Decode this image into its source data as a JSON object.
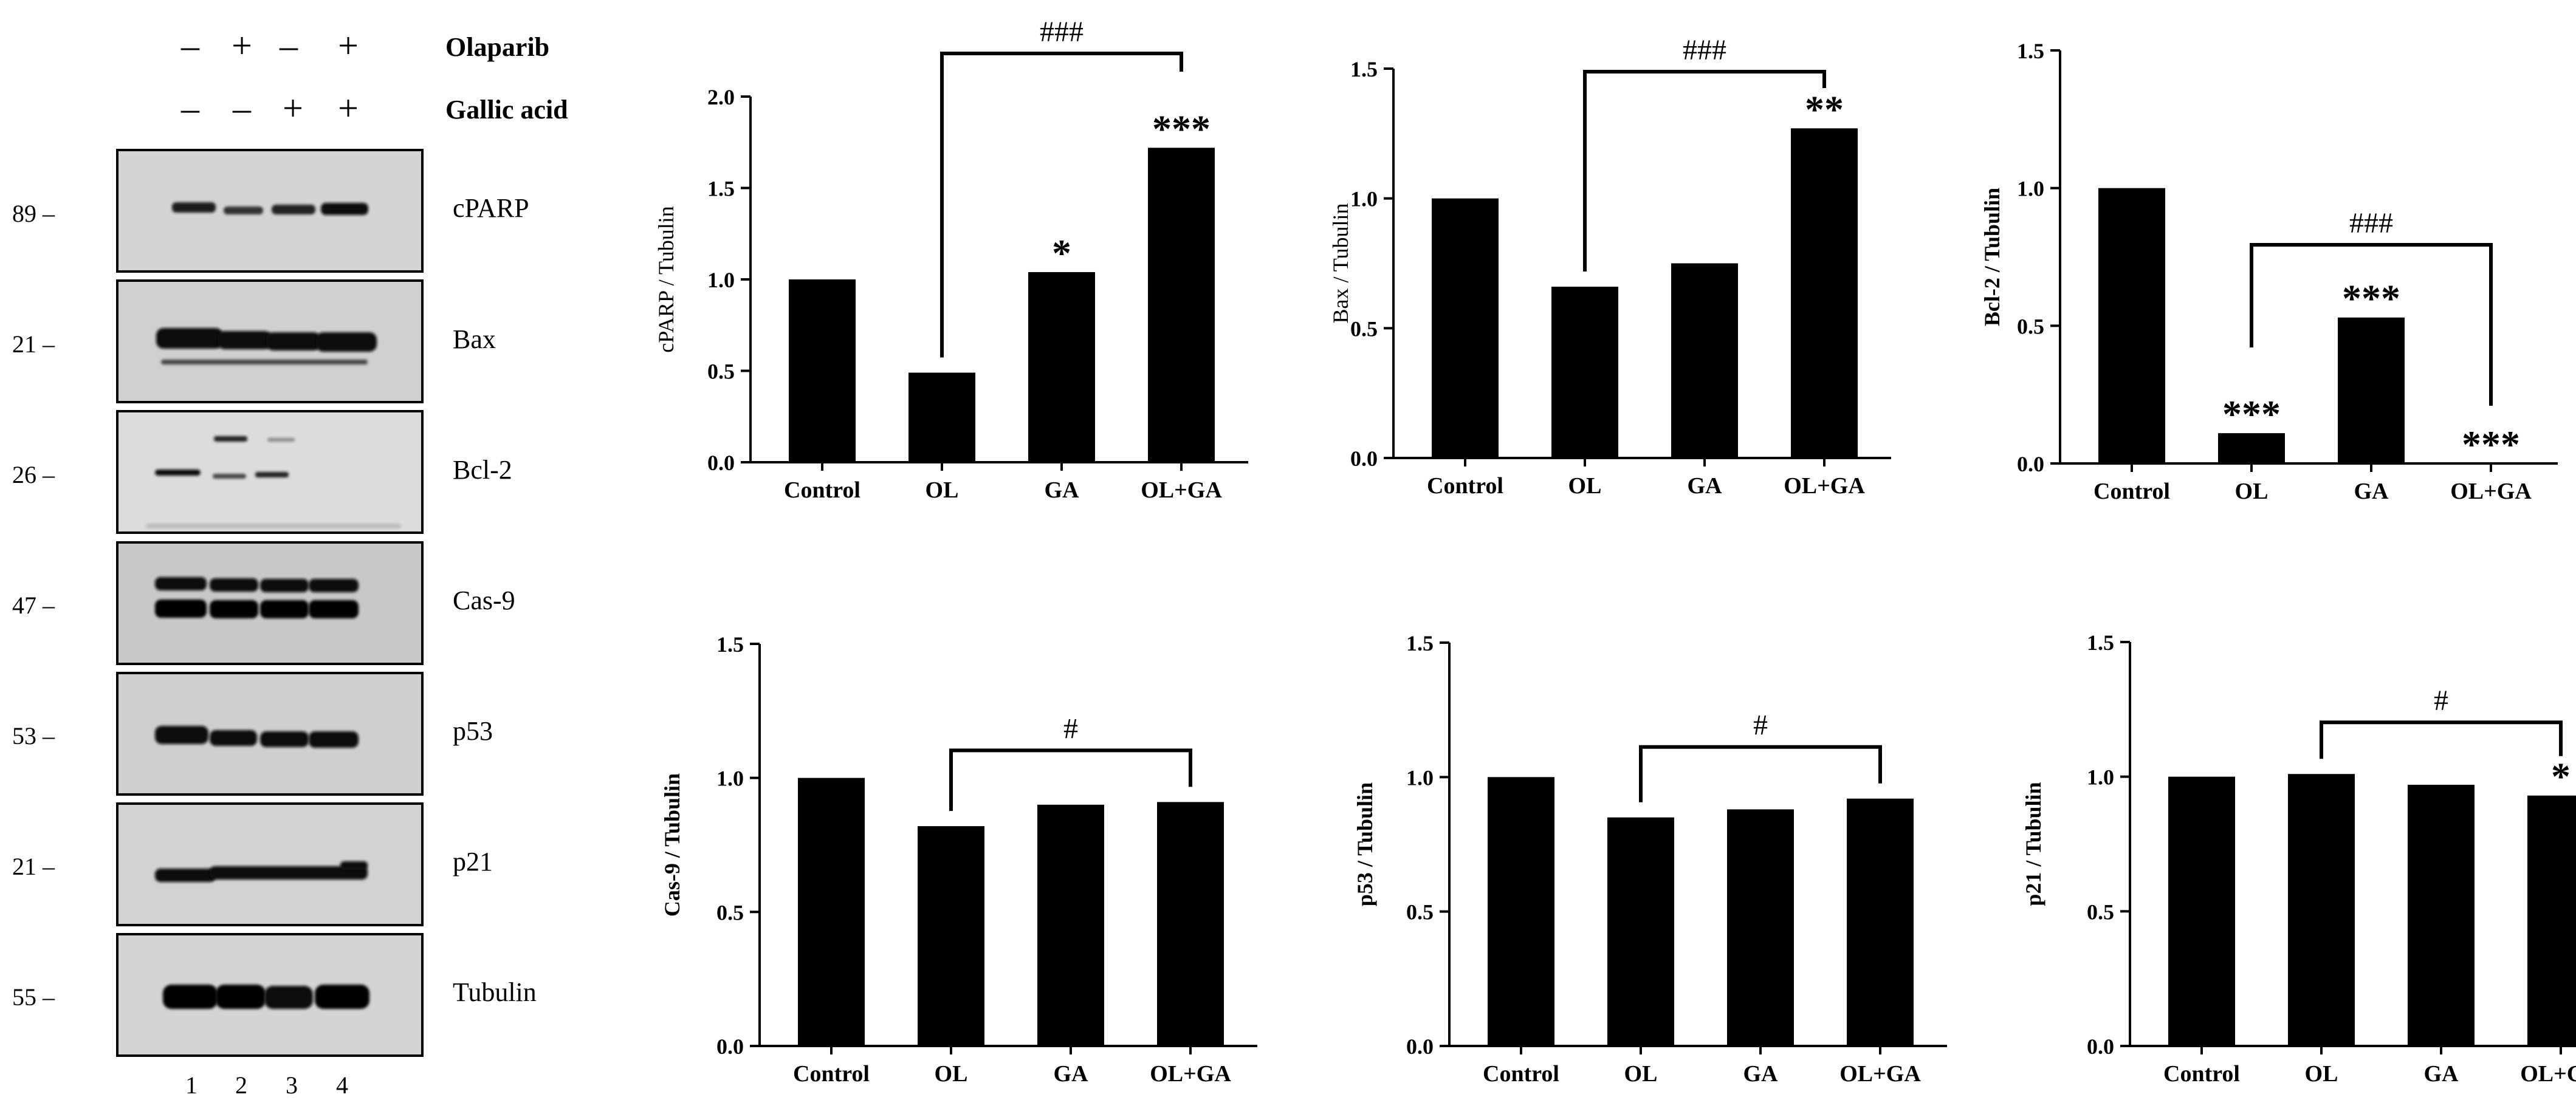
{
  "blot": {
    "treatments": [
      {
        "name": "Olaparib",
        "signs": [
          "–",
          "+",
          "–",
          "+"
        ]
      },
      {
        "name": "Gallic acid",
        "signs": [
          "–",
          "–",
          "+",
          "+"
        ]
      }
    ],
    "bands": [
      {
        "mw": "89 –",
        "label": "cPARP"
      },
      {
        "mw": "21 –",
        "label": "Bax"
      },
      {
        "mw": "26 –",
        "label": "Bcl-2"
      },
      {
        "mw": "47 –",
        "label": "Cas-9"
      },
      {
        "mw": "53 –",
        "label": "p53"
      },
      {
        "mw": "21 –",
        "label": "p21"
      },
      {
        "mw": "55 –",
        "label": "Tubulin"
      }
    ],
    "lanes": [
      "1",
      "2",
      "3",
      "4"
    ]
  },
  "chart_data": [
    {
      "type": "bar",
      "ylabel": "cPARP / Tubulin",
      "categories": [
        "Control",
        "OL",
        "GA",
        "OL+GA"
      ],
      "values": [
        1.0,
        0.49,
        1.04,
        1.72
      ],
      "ylim": [
        0,
        2.0
      ],
      "yticks": [
        "0.0",
        "0.5",
        "1.0",
        "1.5",
        "2.0"
      ],
      "stars": [
        "",
        "",
        "*",
        "***"
      ],
      "bracket": {
        "from": 1,
        "to": 3,
        "label": "###"
      },
      "ylabel_bold": false
    },
    {
      "type": "bar",
      "ylabel": "Bax / Tubulin",
      "categories": [
        "Control",
        "OL",
        "GA",
        "OL+GA"
      ],
      "values": [
        1.0,
        0.66,
        0.75,
        1.27
      ],
      "ylim": [
        0,
        1.5
      ],
      "yticks": [
        "0.0",
        "0.5",
        "1.0",
        "1.5"
      ],
      "stars": [
        "",
        "",
        "",
        "**"
      ],
      "bracket": {
        "from": 1,
        "to": 3,
        "label": "###"
      },
      "ylabel_bold": false
    },
    {
      "type": "bar",
      "ylabel": "Bcl-2 / Tubulin",
      "categories": [
        "Control",
        "OL",
        "GA",
        "OL+GA"
      ],
      "values": [
        1.0,
        0.11,
        0.53,
        0.0
      ],
      "ylim": [
        0,
        1.5
      ],
      "yticks": [
        "0.0",
        "0.5",
        "1.0",
        "1.5"
      ],
      "stars": [
        "",
        "***",
        "***",
        "***"
      ],
      "bracket": {
        "from": 1,
        "to": 3,
        "label": "###"
      },
      "ylabel_bold": true
    },
    {
      "type": "bar",
      "ylabel": "Cas-9 / Tubulin",
      "categories": [
        "Control",
        "OL",
        "GA",
        "OL+GA"
      ],
      "values": [
        1.0,
        0.82,
        0.9,
        0.91
      ],
      "ylim": [
        0,
        1.5
      ],
      "yticks": [
        "0.0",
        "0.5",
        "1.0",
        "1.5"
      ],
      "stars": [
        "",
        "",
        "",
        ""
      ],
      "bracket": {
        "from": 1,
        "to": 3,
        "label": "#"
      },
      "ylabel_bold": true
    },
    {
      "type": "bar",
      "ylabel": "p53 / Tubulin",
      "categories": [
        "Control",
        "OL",
        "GA",
        "OL+GA"
      ],
      "values": [
        1.0,
        0.85,
        0.88,
        0.92
      ],
      "ylim": [
        0,
        1.5
      ],
      "yticks": [
        "0.0",
        "0.5",
        "1.0",
        "1.5"
      ],
      "stars": [
        "",
        "",
        "",
        ""
      ],
      "bracket": {
        "from": 1,
        "to": 3,
        "label": "#"
      },
      "ylabel_bold": true
    },
    {
      "type": "bar",
      "ylabel": "p21 / Tubulin",
      "categories": [
        "Control",
        "OL",
        "GA",
        "OL+GA"
      ],
      "values": [
        1.0,
        1.01,
        0.97,
        0.93
      ],
      "ylim": [
        0,
        1.5
      ],
      "yticks": [
        "0.0",
        "0.5",
        "1.0",
        "1.5"
      ],
      "stars": [
        "",
        "",
        "",
        "*"
      ],
      "bracket": {
        "from": 1,
        "to": 3,
        "label": "#"
      },
      "ylabel_bold": true
    }
  ]
}
